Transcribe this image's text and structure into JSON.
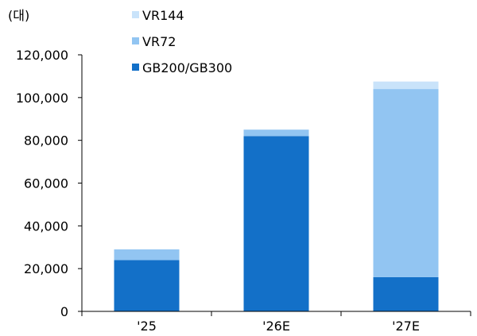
{
  "chart_data": {
    "type": "bar",
    "stacked": true,
    "ylabel": "(대)",
    "categories": [
      "'25",
      "'26E",
      "'27E"
    ],
    "ylim": [
      0,
      120000
    ],
    "yticks": [
      0,
      20000,
      40000,
      60000,
      80000,
      100000,
      120000
    ],
    "ytick_labels": [
      "0",
      "20,000",
      "40,000",
      "60,000",
      "80,000",
      "100,000",
      "120,000"
    ],
    "grid": false,
    "legend_position": "top",
    "series": [
      {
        "name": "GB200/GB300",
        "color": "#1370C8",
        "values": [
          24000,
          82000,
          16000
        ]
      },
      {
        "name": "VR72",
        "color": "#92C5F2",
        "values": [
          5000,
          3000,
          88000
        ]
      },
      {
        "name": "VR144",
        "color": "#C9E3FA",
        "values": [
          0,
          0,
          3500
        ]
      }
    ],
    "legend_order": [
      "VR144",
      "VR72",
      "GB200/GB300"
    ]
  }
}
